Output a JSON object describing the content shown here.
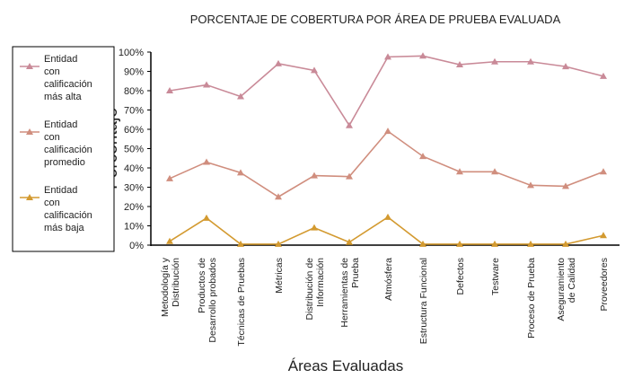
{
  "chart_data": {
    "type": "line",
    "title": "PORCENTAJE DE COBERTURA POR ÁREA DE PRUEBA EVALUADA",
    "xlabel": "Áreas Evaluadas",
    "ylabel": "Porcentaje",
    "ylim": [
      0,
      100
    ],
    "yticks": [
      "0%",
      "10%",
      "20%",
      "30%",
      "40%",
      "50%",
      "60%",
      "70%",
      "80%",
      "90%",
      "100%"
    ],
    "categories": [
      [
        "Metodología y",
        "Distribución"
      ],
      [
        "Productos de",
        "Desarrollo probados"
      ],
      [
        "Técnicas de Pruebas"
      ],
      [
        "Métricas"
      ],
      [
        "Distribución de",
        "Información"
      ],
      [
        "Herramientas de",
        "Prueba"
      ],
      [
        "Atmósfera"
      ],
      [
        "Estructura Funcional"
      ],
      [
        "Defectos"
      ],
      [
        "Testware"
      ],
      [
        "Proceso de Prueba"
      ],
      [
        "Aseguramiento",
        "de Calidad"
      ],
      [
        "Proveedores"
      ]
    ],
    "legend_position": "left",
    "series": [
      {
        "name": [
          "Entidad",
          "con",
          "calificación",
          "más alta"
        ],
        "color": "#c98a98",
        "values": [
          80,
          83,
          77,
          94,
          90.5,
          62,
          97.5,
          98,
          93.5,
          95,
          95,
          92.5,
          87.5
        ]
      },
      {
        "name": [
          "Entidad",
          "con",
          "calificación",
          "promedio"
        ],
        "color": "#d08e7e",
        "values": [
          34.5,
          43,
          37.5,
          25,
          36,
          35.5,
          59,
          46,
          38,
          38,
          31,
          30.5,
          38
        ]
      },
      {
        "name": [
          "Entidad",
          "con",
          "calificación",
          "más baja"
        ],
        "color": "#d39a30",
        "values": [
          2,
          14,
          0.5,
          0.5,
          9,
          1.5,
          14.5,
          0.5,
          0.5,
          0.5,
          0.5,
          0.5,
          5
        ]
      }
    ]
  }
}
